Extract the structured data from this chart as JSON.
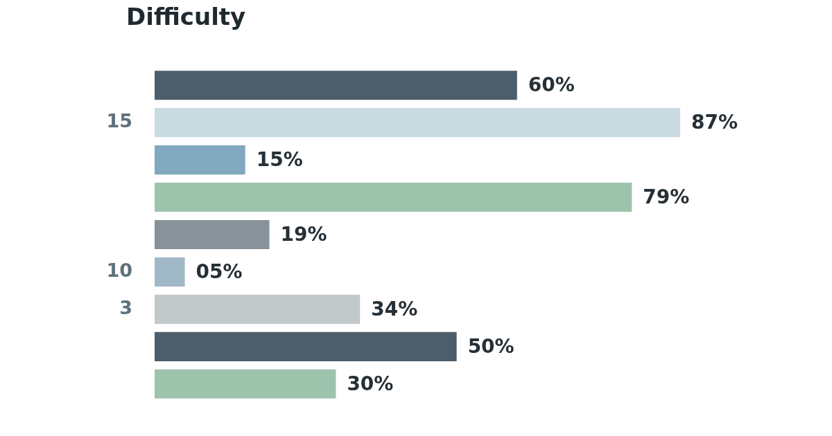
{
  "chart_data": {
    "type": "bar",
    "orientation": "horizontal",
    "title": "Difficulty",
    "categories": [
      null,
      "15",
      null,
      null,
      null,
      "10",
      "3",
      null,
      null
    ],
    "values": [
      60,
      87,
      15,
      79,
      19,
      5,
      34,
      50,
      30
    ],
    "colors": [
      "#4d5d69",
      "#c9dbe1",
      "#82a8bf",
      "#9dc3ad",
      "#87929a",
      "#a1b8c6",
      "#c3c8cb",
      "#4d5d69",
      "#9dc3ad"
    ],
    "value_labels": [
      "60%",
      "87%",
      "15%",
      "79%",
      "19%",
      "05%",
      "34%",
      "50%",
      "30%"
    ]
  }
}
